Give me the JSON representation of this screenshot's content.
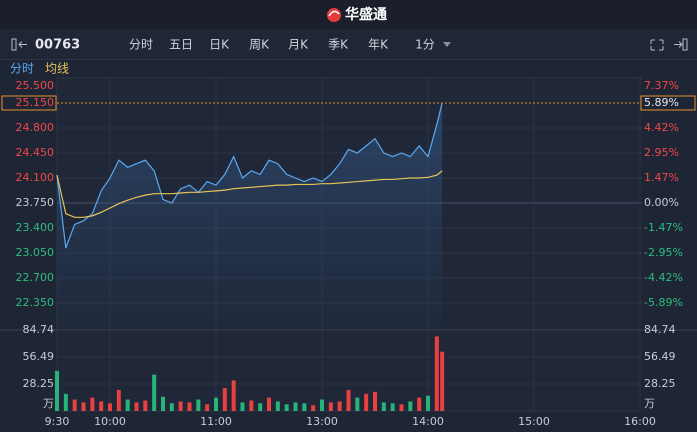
{
  "header": {
    "logo": "华盛通"
  },
  "toolbar": {
    "code": "00763",
    "tabs": [
      "分时",
      "五日",
      "日K",
      "周K",
      "月K",
      "季K",
      "年K",
      "1分"
    ]
  },
  "chart_data": [
    {
      "type": "line",
      "xlim": [
        0,
        330
      ],
      "x": [
        0,
        5,
        10,
        15,
        20,
        25,
        30,
        35,
        40,
        45,
        50,
        55,
        60,
        65,
        70,
        75,
        80,
        85,
        90,
        95,
        100,
        105,
        110,
        115,
        120,
        125,
        130,
        135,
        140,
        145,
        150,
        155,
        160,
        165,
        170,
        175,
        180,
        185,
        190,
        195,
        200,
        205,
        210,
        215,
        218
      ],
      "series": [
        {
          "name": "分时",
          "color": "#5aa9f0",
          "values": [
            24.14,
            23.12,
            23.45,
            23.5,
            23.6,
            23.92,
            24.1,
            24.35,
            24.25,
            24.3,
            24.35,
            24.2,
            23.8,
            23.75,
            23.95,
            24.0,
            23.9,
            24.05,
            24.0,
            24.15,
            24.4,
            24.1,
            24.2,
            24.15,
            24.35,
            24.3,
            24.15,
            24.1,
            24.05,
            24.1,
            24.05,
            24.15,
            24.3,
            24.5,
            24.45,
            24.55,
            24.65,
            24.45,
            24.4,
            24.45,
            24.4,
            24.55,
            24.4,
            24.85,
            25.15
          ]
        },
        {
          "name": "均线",
          "color": "#e8c35a",
          "values": [
            24.14,
            23.6,
            23.55,
            23.55,
            23.57,
            23.62,
            23.68,
            23.74,
            23.79,
            23.83,
            23.86,
            23.88,
            23.88,
            23.88,
            23.89,
            23.9,
            23.9,
            23.91,
            23.92,
            23.93,
            23.95,
            23.96,
            23.97,
            23.98,
            23.99,
            24.0,
            24.0,
            24.01,
            24.01,
            24.01,
            24.02,
            24.02,
            24.03,
            24.04,
            24.05,
            24.06,
            24.07,
            24.08,
            24.08,
            24.09,
            24.1,
            24.1,
            24.11,
            24.14,
            24.2
          ]
        }
      ],
      "ylim": [
        22.0,
        25.5
      ],
      "yticks": [
        {
          "value": 25.5,
          "label": "25.500"
        },
        {
          "value": 24.8,
          "label": "24.800"
        },
        {
          "value": 24.45,
          "label": "24.450"
        },
        {
          "value": 24.1,
          "label": "24.100"
        },
        {
          "value": 23.75,
          "label": "23.750"
        },
        {
          "value": 23.4,
          "label": "23.400"
        },
        {
          "value": 23.05,
          "label": "23.050"
        },
        {
          "value": 22.7,
          "label": "22.700"
        },
        {
          "value": 22.35,
          "label": "22.350"
        }
      ],
      "y2lim": [
        -7.37,
        7.37
      ],
      "y2ticks": [
        {
          "value": 7.37,
          "label": "7.37%"
        },
        {
          "value": 4.42,
          "label": "4.42%"
        },
        {
          "value": 2.95,
          "label": "2.95%"
        },
        {
          "value": 1.47,
          "label": "1.47%"
        },
        {
          "value": 0,
          "label": "0.00%"
        },
        {
          "value": -1.47,
          "label": "-1.47%"
        },
        {
          "value": -2.95,
          "label": "-2.95%"
        },
        {
          "value": -4.42,
          "label": "-4.42%"
        },
        {
          "value": -5.89,
          "label": "-5.89%"
        }
      ],
      "last": {
        "price": {
          "value": 25.15,
          "label": "25.150"
        },
        "change": {
          "value": 5.89,
          "label": "5.89%"
        }
      },
      "colors": {
        "up": "#f04848",
        "down": "#2dbd7f",
        "flat": "#c8ccd4",
        "marker": "#e8912c"
      },
      "grid": true
    },
    {
      "type": "bar",
      "xlim": [
        0,
        330
      ],
      "x": [
        0,
        5,
        10,
        15,
        20,
        25,
        30,
        35,
        40,
        45,
        50,
        55,
        60,
        65,
        70,
        75,
        80,
        85,
        90,
        95,
        100,
        105,
        110,
        115,
        120,
        125,
        130,
        135,
        140,
        145,
        150,
        155,
        160,
        165,
        170,
        175,
        180,
        185,
        190,
        195,
        200,
        205,
        210,
        215,
        218
      ],
      "values": [
        42,
        18,
        12,
        9,
        14,
        10,
        8,
        22,
        12,
        9,
        11,
        38,
        15,
        8,
        10,
        9,
        12,
        7,
        14,
        24,
        32,
        9,
        11,
        8,
        14,
        10,
        7,
        9,
        8,
        6,
        12,
        9,
        10,
        22,
        14,
        18,
        20,
        9,
        8,
        7,
        10,
        14,
        16,
        78,
        62
      ],
      "colors": [
        "#27b47a",
        "#27b47a",
        "#e8413e",
        "#e8413e",
        "#e8413e",
        "#e8413e",
        "#e8413e",
        "#e8413e",
        "#27b47a",
        "#e8413e",
        "#e8413e",
        "#27b47a",
        "#27b47a",
        "#27b47a",
        "#e8413e",
        "#e8413e",
        "#27b47a",
        "#e8413e",
        "#27b47a",
        "#e8413e",
        "#e8413e",
        "#27b47a",
        "#e8413e",
        "#27b47a",
        "#e8413e",
        "#27b47a",
        "#27b47a",
        "#27b47a",
        "#27b47a",
        "#e8413e",
        "#27b47a",
        "#e8413e",
        "#e8413e",
        "#e8413e",
        "#27b47a",
        "#e8413e",
        "#e8413e",
        "#27b47a",
        "#27b47a",
        "#e8413e",
        "#27b47a",
        "#e8413e",
        "#27b47a",
        "#e8413e",
        "#e8413e"
      ],
      "ylim": [
        0,
        84.74
      ],
      "yticks": [
        84.74,
        56.49,
        28.25,
        {
          "value": 0,
          "label": "万"
        }
      ],
      "xticks": [
        {
          "value": 0,
          "label": "9:30"
        },
        {
          "value": 30,
          "label": "10:00"
        },
        {
          "value": 90,
          "label": "11:00"
        },
        {
          "value": 150,
          "label": "13:00"
        },
        {
          "value": 210,
          "label": "14:00"
        },
        {
          "value": 270,
          "label": "15:00"
        },
        {
          "value": 330,
          "label": "16:00"
        }
      ],
      "grid": true
    }
  ]
}
